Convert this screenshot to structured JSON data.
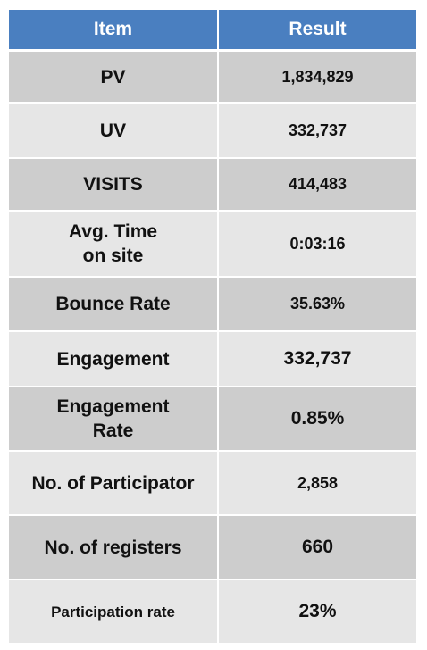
{
  "header": {
    "item": "Item",
    "result": "Result"
  },
  "rows": [
    {
      "item": "PV",
      "result": "1,834,829"
    },
    {
      "item": "UV",
      "result": "332,737"
    },
    {
      "item": "VISITS",
      "result": "414,483"
    },
    {
      "item": "Avg. Time\non site",
      "result": "0:03:16"
    },
    {
      "item": "Bounce Rate",
      "result": "35.63%"
    },
    {
      "item": "Engagement",
      "result": "332,737"
    },
    {
      "item": "Engagement\nRate",
      "result": "0.85%"
    },
    {
      "item": "No. of Participator",
      "result": "2,858"
    },
    {
      "item": "No. of registers",
      "result": "660"
    },
    {
      "item": "Participation rate",
      "result": "23%"
    }
  ],
  "colors": {
    "header_bg": "#4a7fc0",
    "row_dark": "#cdcdcd",
    "row_light": "#e6e6e6"
  }
}
